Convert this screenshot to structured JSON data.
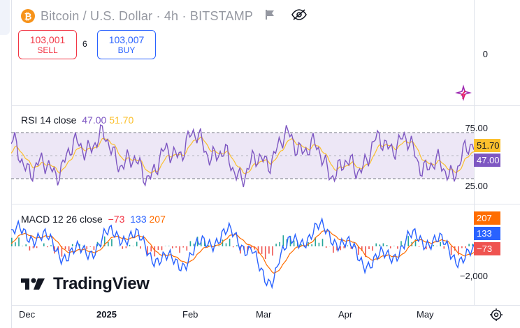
{
  "header": {
    "coin_glyph": "₿",
    "title": "Bitcoin / U.S. Dollar · 4h · BITSTAMP",
    "icons": [
      "bitcoin-icon",
      "flag-icon",
      "eye-off-icon"
    ]
  },
  "trade": {
    "sell_price": "103,001",
    "sell_label": "SELL",
    "spread": "6",
    "buy_price": "103,007",
    "buy_label": "BUY"
  },
  "main_pane": {
    "axis_label": "0"
  },
  "rsi": {
    "name": "RSI 14 close",
    "value1": "47.00",
    "value2": "51.70",
    "axis_top": "75.00",
    "axis_bottom": "25.00",
    "badge_signal": "51.70",
    "badge_rsi": "47.00"
  },
  "macd": {
    "name": "MACD 12 26 close",
    "hist": "−73",
    "macd": "133",
    "signal": "207",
    "axis_label": "−2,000",
    "badge_signal": "207",
    "badge_macd": "133",
    "badge_hist": "−73"
  },
  "x_axis": [
    "Dec",
    "2025",
    "Feb",
    "Mar",
    "Apr",
    "May"
  ],
  "branding": "TradingView",
  "colors": {
    "sell": "#f23645",
    "buy": "#2962ff",
    "rsi_line": "#7e57c2",
    "rsi_signal": "#fbc02d",
    "rsi_band": "#ede7f6",
    "macd_line": "#2962ff",
    "signal_line": "#ff6d00",
    "hist_up": "#26a69a",
    "hist_down": "#ef5350"
  }
}
